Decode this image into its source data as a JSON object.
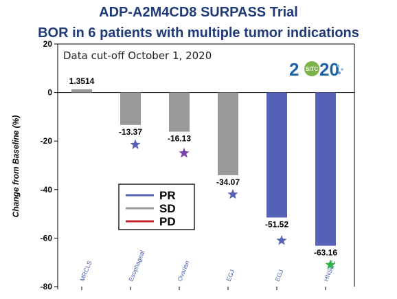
{
  "title_line1": "ADP-A2M4CD8 SURPASS Trial",
  "title_line2": "BOR in 6 patients with multiple tumor indications",
  "annotation": "Data cut-off October 1, 2020",
  "logo": {
    "text_2": "2",
    "text_sitc": "SITC",
    "text_20": "20"
  },
  "colors": {
    "PR": "#5561b4",
    "SD": "#999999",
    "PD": "#c0272d",
    "title": "#1f3a78"
  },
  "chart_data": {
    "type": "bar",
    "categories": [
      "MRCLS",
      "Esophageal",
      "Ovarian",
      "EGJ",
      "EGJ",
      "HNSCC"
    ],
    "values": [
      1.3514,
      -13.37,
      -16.13,
      -34.07,
      -51.52,
      -63.16
    ],
    "value_labels": [
      "1.3514",
      "-13.37",
      "-16.13",
      "-34.07",
      "-51.52",
      "-63.16"
    ],
    "response": [
      "SD",
      "SD",
      "SD",
      "SD",
      "PR",
      "PR"
    ],
    "ylabel": "Change from Baseline (%)",
    "ylim": [
      -80,
      20
    ],
    "yticks": [
      20,
      0,
      -20,
      -40,
      -60,
      -80
    ],
    "ytick_labels": [
      "20",
      "0",
      "-20",
      "-40",
      "-60",
      "-80"
    ],
    "legend": [
      "PR",
      "SD",
      "PD"
    ],
    "legend_position": "center-left",
    "stars": [
      {
        "category_index": 1,
        "y": -21.5,
        "color": "#5561b4"
      },
      {
        "category_index": 2,
        "y": -25,
        "color": "#7b3fa8"
      },
      {
        "category_index": 3,
        "y": -42,
        "color": "#5561b4"
      },
      {
        "category_index": 4,
        "y": -61,
        "color": "#5561b4"
      },
      {
        "category_index": 5,
        "y": -71,
        "color": "#2db04a"
      }
    ]
  }
}
